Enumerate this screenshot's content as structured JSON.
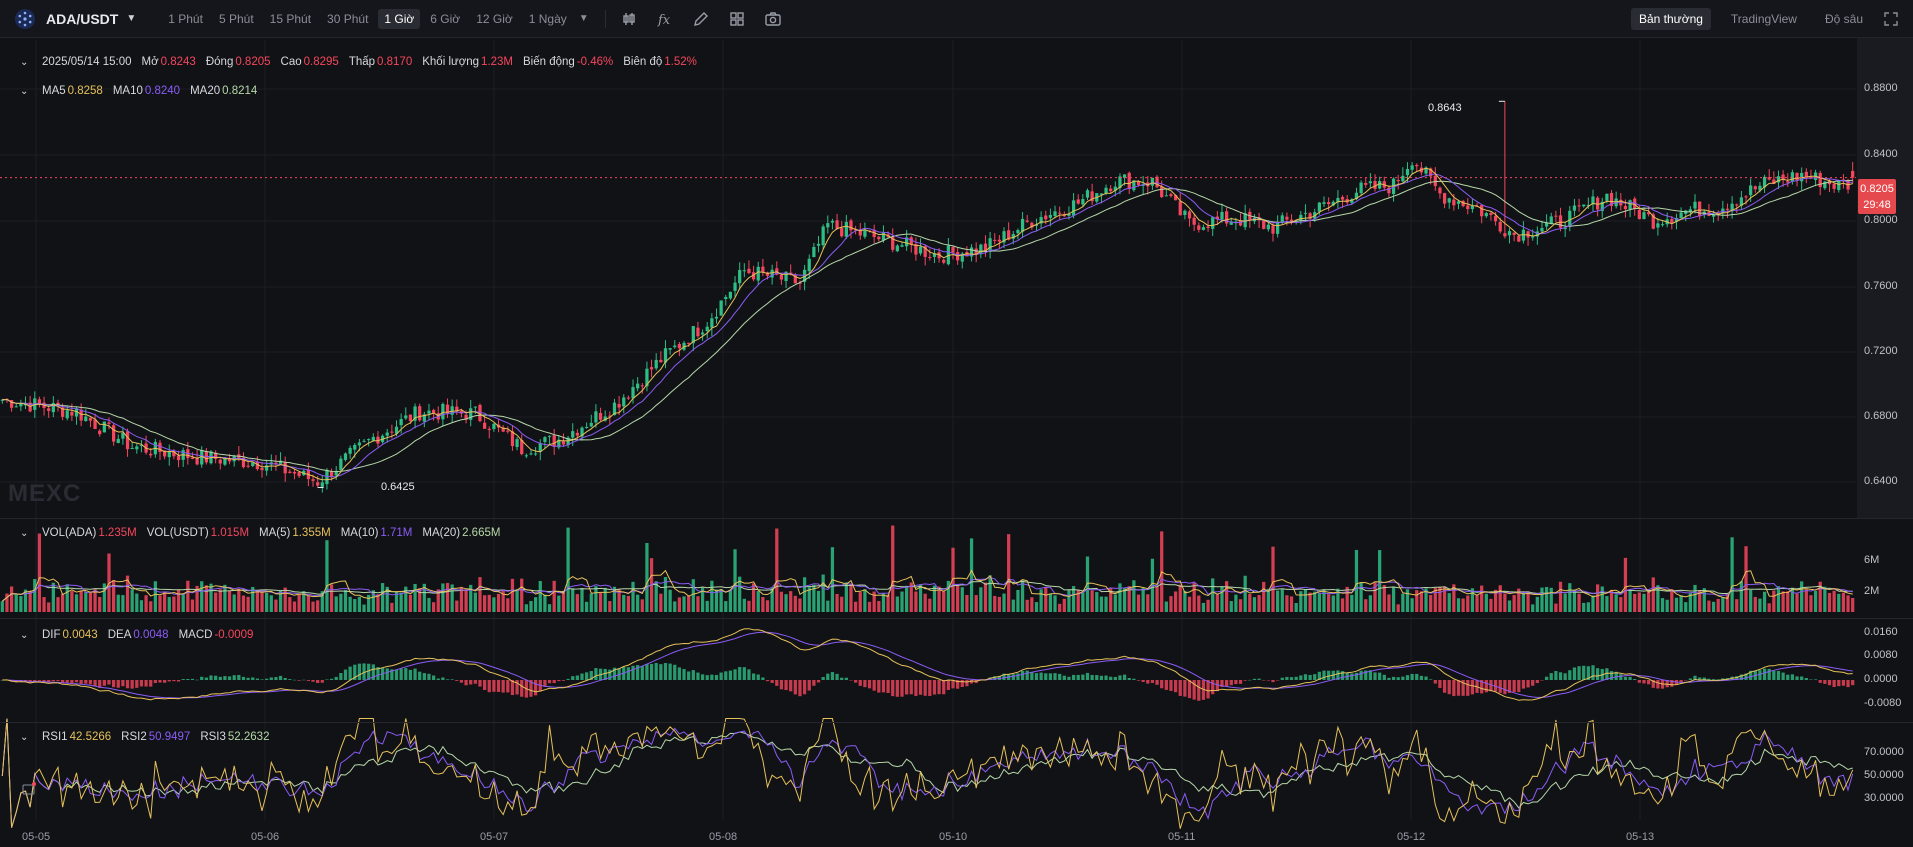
{
  "toolbar": {
    "symbol": "ADA/USDT",
    "intervals": [
      "1 Phút",
      "5 Phút",
      "15 Phút",
      "30 Phút",
      "1 Giờ",
      "6 Giờ",
      "12 Giờ",
      "1 Ngày"
    ],
    "active_interval": "1 Giờ",
    "tools": [
      "candle-type-icon",
      "indicator-fx-icon",
      "draw-pencil-icon",
      "layout-grid-icon",
      "camera-icon"
    ],
    "view_modes": [
      "Bản thường",
      "TradingView",
      "Độ sâu"
    ],
    "active_view": "Bản thường"
  },
  "ohlc_legend": {
    "date": "2025/05/14 15:00",
    "open_label": "Mở",
    "open": "0.8243",
    "close_label": "Đóng",
    "close": "0.8205",
    "high_label": "Cao",
    "high": "0.8295",
    "low_label": "Thấp",
    "low": "0.8170",
    "volume_label": "Khối lượng",
    "volume": "1.23M",
    "change_label": "Biến động",
    "change": "-0.46%",
    "amplitude_label": "Biên độ",
    "amplitude": "1.52%"
  },
  "ma_legend": {
    "ma5_label": "MA5",
    "ma5": "0.8258",
    "ma10_label": "MA10",
    "ma10": "0.8240",
    "ma20_label": "MA20",
    "ma20": "0.8214"
  },
  "vol_legend": {
    "vol_ada_label": "VOL(ADA)",
    "vol_ada": "1.235M",
    "vol_usdt_label": "VOL(USDT)",
    "vol_usdt": "1.015M",
    "ma5_label": "MA(5)",
    "ma5": "1.355M",
    "ma10_label": "MA(10)",
    "ma10": "1.71M",
    "ma20_label": "MA(20)",
    "ma20": "2.665M"
  },
  "macd_legend": {
    "dif_label": "DIF",
    "dif": "0.0043",
    "dea_label": "DEA",
    "dea": "0.0048",
    "macd_label": "MACD",
    "macd": "-0.0009"
  },
  "rsi_legend": {
    "rsi1_label": "RSI1",
    "rsi1": "42.5266",
    "rsi2_label": "RSI2",
    "rsi2": "50.9497",
    "rsi3_label": "RSI3",
    "rsi3": "52.2632"
  },
  "price_axis": [
    "0.8800",
    "0.8400",
    "0.8000",
    "0.7600",
    "0.7200",
    "0.6800",
    "0.6400"
  ],
  "volume_axis": [
    "6M",
    "2M"
  ],
  "macd_axis": [
    "0.0160",
    "0.0080",
    "0.0000",
    "-0.0080"
  ],
  "rsi_axis": [
    "70.0000",
    "50.0000",
    "30.0000"
  ],
  "current_price": {
    "price": "0.8205",
    "countdown": "29:48"
  },
  "annotations": {
    "high": "0.8643",
    "low": "0.6425"
  },
  "watermark": "MEXC",
  "colors": {
    "up": "#2ebd85",
    "down": "#f6465d",
    "ma5": "#e6c15a",
    "ma10": "#8a5cf6",
    "ma20": "#b6d7a8",
    "background": "#111216"
  },
  "chart_data": {
    "type": "candlestick",
    "x_dates": [
      "05-05",
      "05-06",
      "05-07",
      "05-08",
      "05-10",
      "05-11",
      "05-12",
      "05-13"
    ],
    "y_range": [
      0.625,
      0.8995
    ],
    "keypoints_close": [
      [
        0,
        0.693
      ],
      [
        16,
        0.686
      ],
      [
        28,
        0.666
      ],
      [
        42,
        0.66
      ],
      [
        56,
        0.657
      ],
      [
        68,
        0.646
      ],
      [
        80,
        0.671
      ],
      [
        90,
        0.686
      ],
      [
        102,
        0.685
      ],
      [
        112,
        0.665
      ],
      [
        120,
        0.67
      ],
      [
        132,
        0.69
      ],
      [
        142,
        0.716
      ],
      [
        152,
        0.738
      ],
      [
        160,
        0.767
      ],
      [
        172,
        0.76
      ],
      [
        178,
        0.793
      ],
      [
        190,
        0.785
      ],
      [
        202,
        0.776
      ],
      [
        212,
        0.78
      ],
      [
        222,
        0.796
      ],
      [
        232,
        0.806
      ],
      [
        240,
        0.819
      ],
      [
        248,
        0.818
      ],
      [
        256,
        0.794
      ],
      [
        266,
        0.797
      ],
      [
        274,
        0.792
      ],
      [
        286,
        0.805
      ],
      [
        292,
        0.813
      ],
      [
        300,
        0.816
      ],
      [
        304,
        0.832
      ],
      [
        310,
        0.811
      ],
      [
        318,
        0.803
      ],
      [
        326,
        0.788
      ],
      [
        336,
        0.795
      ],
      [
        346,
        0.81
      ],
      [
        356,
        0.796
      ],
      [
        364,
        0.802
      ],
      [
        370,
        0.803
      ],
      [
        380,
        0.817
      ],
      [
        388,
        0.822
      ],
      [
        396,
        0.816
      ]
    ],
    "high": 0.8643,
    "low": 0.6425,
    "last": {
      "open": 0.8243,
      "close": 0.8205,
      "high": 0.8295,
      "low": 0.817
    }
  }
}
